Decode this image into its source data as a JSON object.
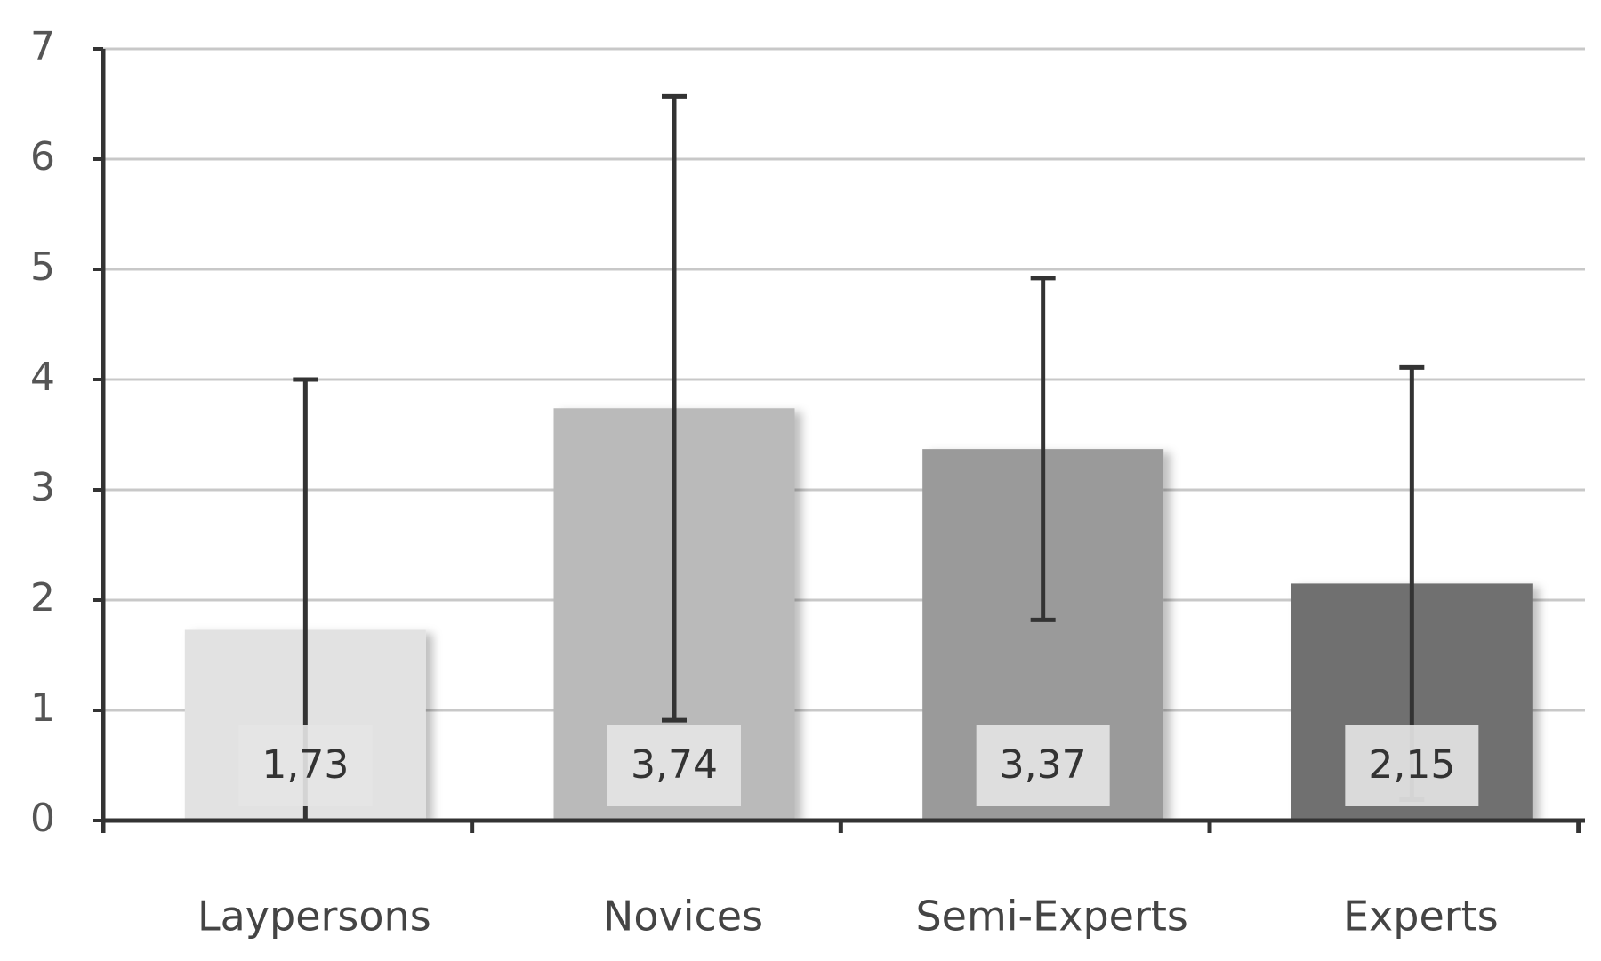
{
  "chart_data": {
    "type": "bar",
    "categories": [
      "Laypersons",
      "Novices",
      "Semi-Experts",
      "Experts"
    ],
    "values": [
      1.73,
      3.74,
      3.37,
      2.15
    ],
    "value_labels": [
      "1,73",
      "3,74",
      "3,37",
      "2,15"
    ],
    "errors": [
      2.27,
      2.83,
      1.55,
      1.96
    ],
    "colors": [
      "#e2e2e2",
      "#bababa",
      "#9a9a9a",
      "#6f6f6f"
    ],
    "ylim": [
      0,
      7
    ],
    "yticks": [
      0,
      1,
      2,
      3,
      4,
      5,
      6,
      7
    ],
    "grid": true
  }
}
